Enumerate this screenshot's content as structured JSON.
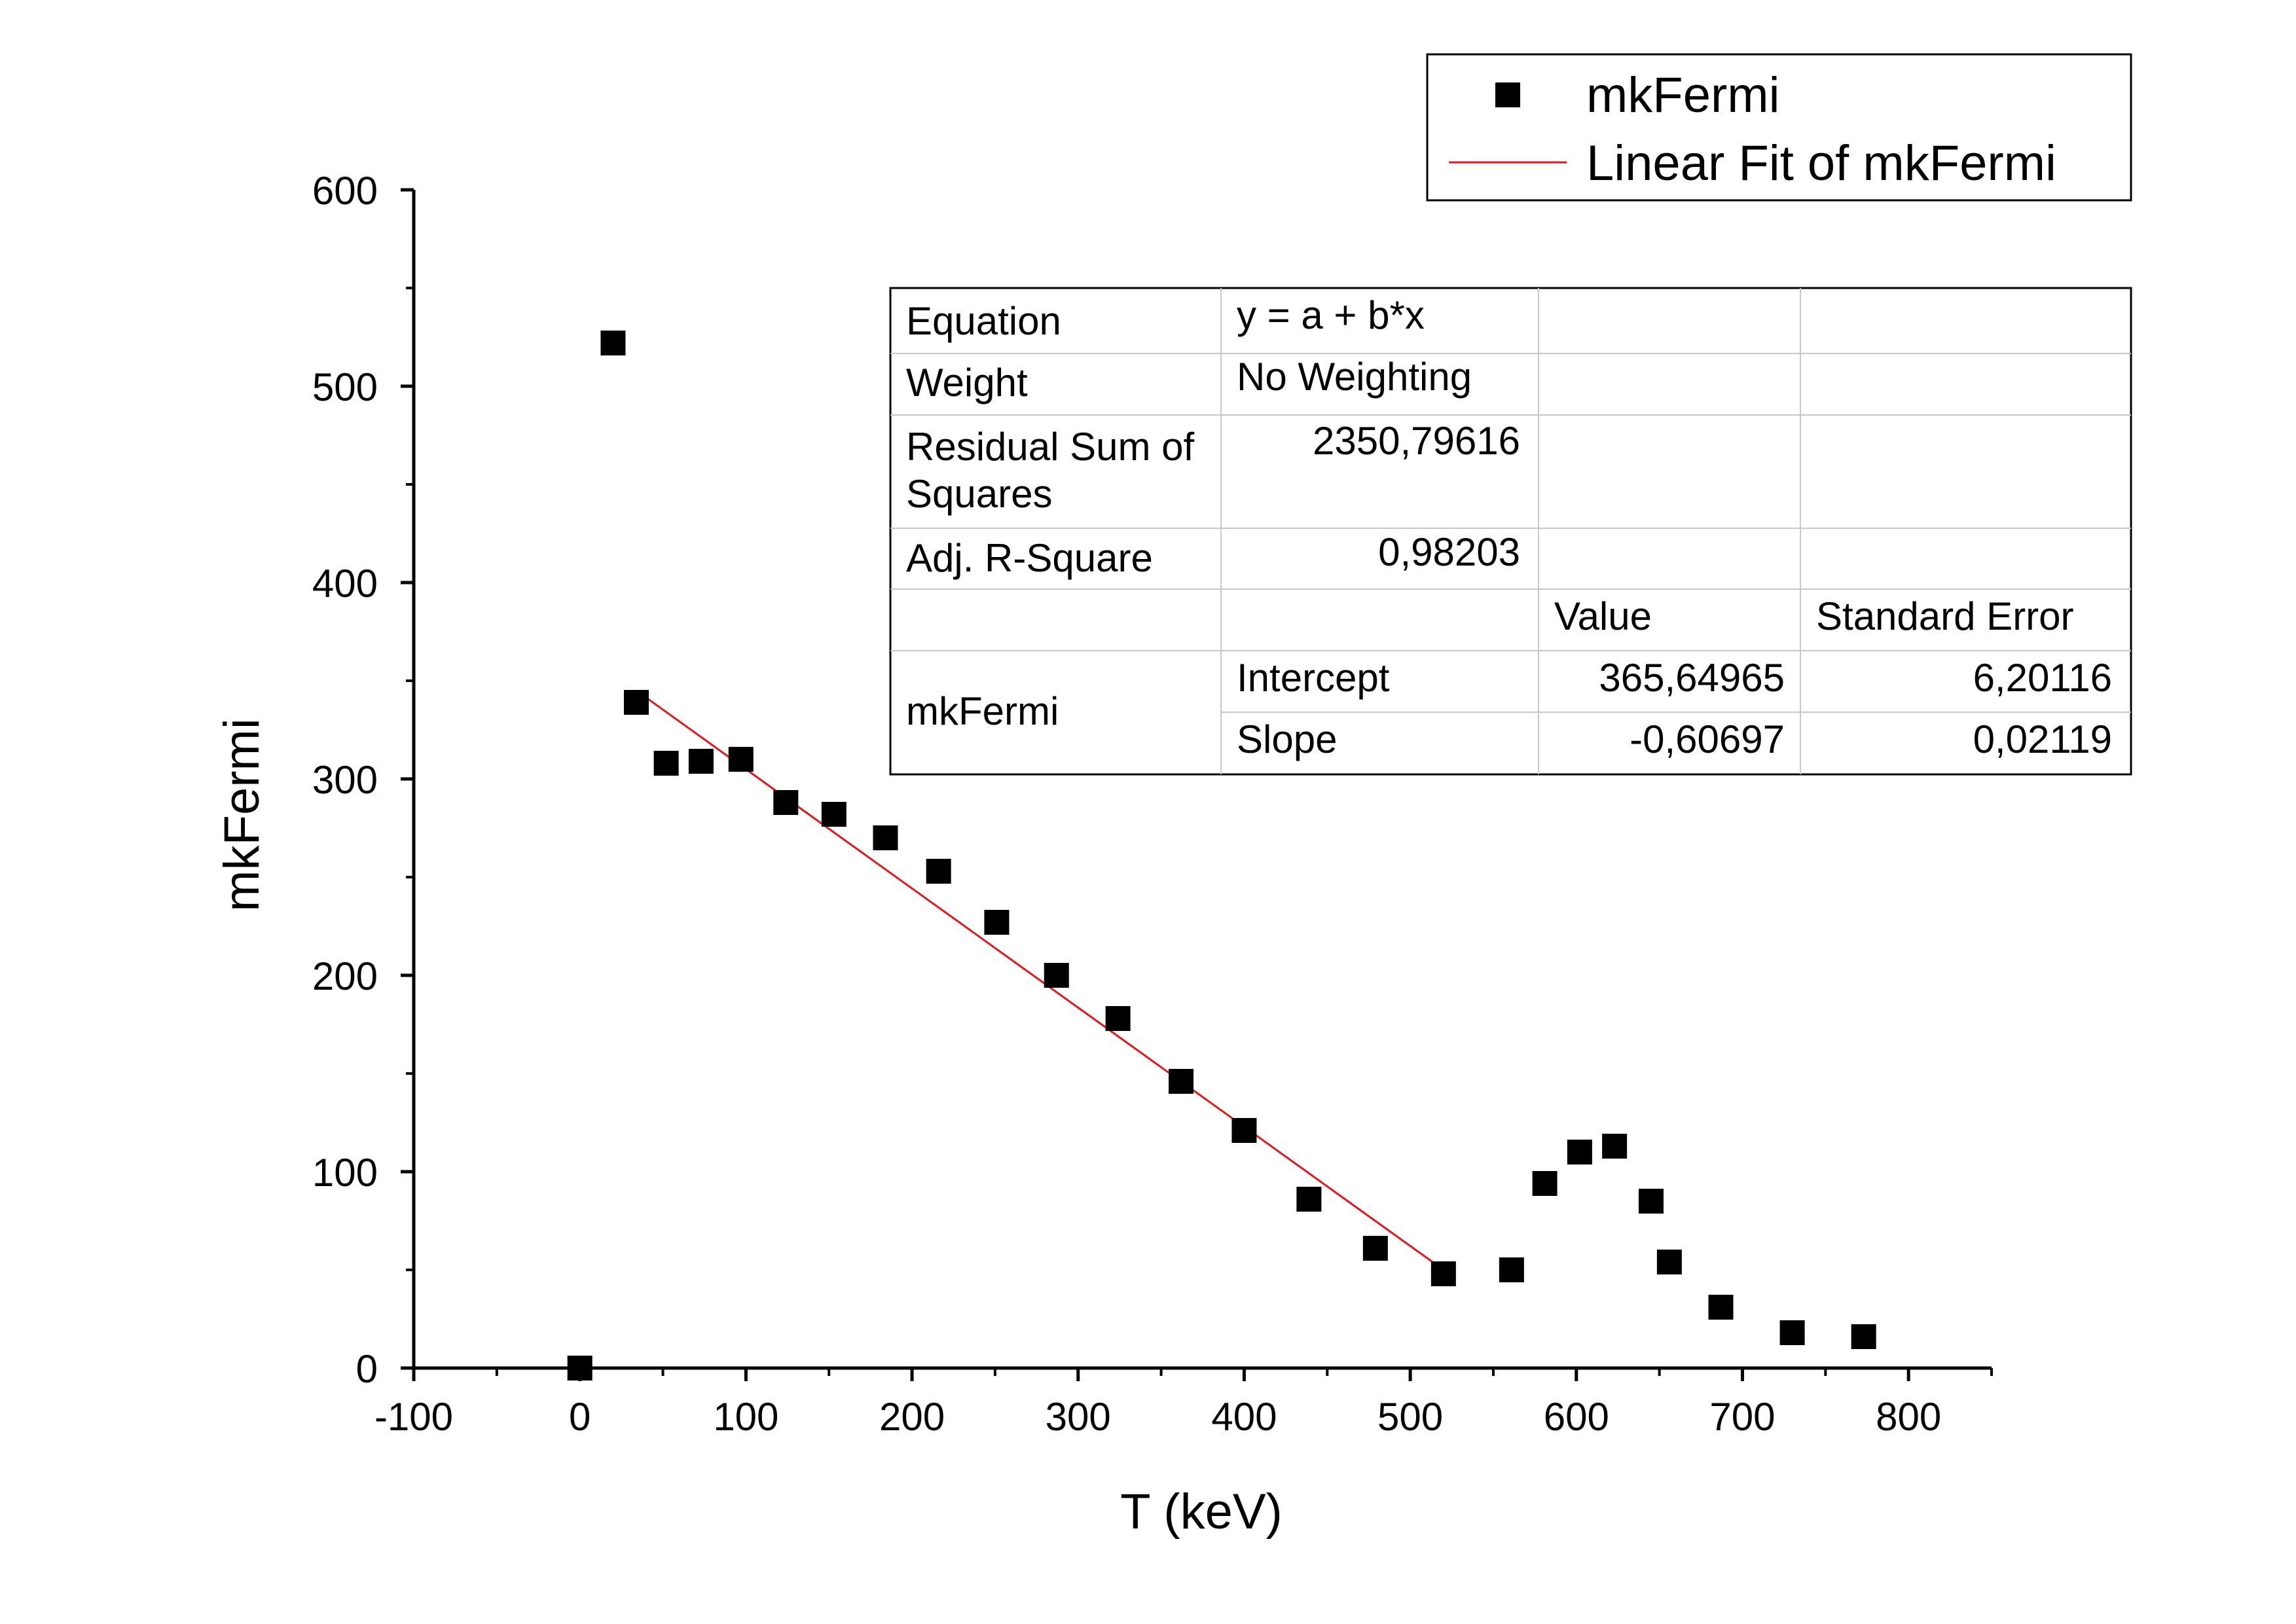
{
  "chart_data": {
    "type": "scatter",
    "title": "",
    "xlabel": "T (keV)",
    "ylabel": "mkFermi",
    "xlim": [
      -100,
      850
    ],
    "ylim": [
      0,
      600
    ],
    "x_ticks": [
      -100,
      0,
      100,
      200,
      300,
      400,
      500,
      600,
      700,
      800
    ],
    "y_ticks": [
      0,
      100,
      200,
      300,
      400,
      500,
      600
    ],
    "x_tick_labels": [
      "-100",
      "0",
      "100",
      "200",
      "300",
      "400",
      "500",
      "600",
      "700",
      "800"
    ],
    "y_tick_labels": [
      "0",
      "100",
      "200",
      "300",
      "400",
      "500",
      "600"
    ],
    "grid": false,
    "series": [
      {
        "name": "mkFermi",
        "marker": "square",
        "color": "#000000",
        "points": [
          {
            "x": 0,
            "y": 0
          },
          {
            "x": 20,
            "y": 522
          },
          {
            "x": 34,
            "y": 339
          },
          {
            "x": 52,
            "y": 308
          },
          {
            "x": 73,
            "y": 309
          },
          {
            "x": 97,
            "y": 310
          },
          {
            "x": 124,
            "y": 288
          },
          {
            "x": 153,
            "y": 282
          },
          {
            "x": 184,
            "y": 270
          },
          {
            "x": 216,
            "y": 253
          },
          {
            "x": 251,
            "y": 227
          },
          {
            "x": 287,
            "y": 200
          },
          {
            "x": 324,
            "y": 178
          },
          {
            "x": 362,
            "y": 146
          },
          {
            "x": 400,
            "y": 121
          },
          {
            "x": 439,
            "y": 86
          },
          {
            "x": 479,
            "y": 61
          },
          {
            "x": 520,
            "y": 48
          },
          {
            "x": 561,
            "y": 50
          },
          {
            "x": 581,
            "y": 94
          },
          {
            "x": 602,
            "y": 110
          },
          {
            "x": 623,
            "y": 113
          },
          {
            "x": 645,
            "y": 85
          },
          {
            "x": 656,
            "y": 54
          },
          {
            "x": 687,
            "y": 31
          },
          {
            "x": 730,
            "y": 18
          },
          {
            "x": 773,
            "y": 16
          }
        ]
      },
      {
        "name": "Linear Fit of mkFermi",
        "type": "line",
        "color": "#e8161b",
        "x_range": [
          34,
          520
        ],
        "intercept": 365.64965,
        "slope": -0.60697
      }
    ],
    "legend": {
      "placement": "top-right",
      "entries": [
        {
          "label": "mkFermi",
          "symbol": "square",
          "color": "#000000"
        },
        {
          "label": "Linear Fit of mkFermi",
          "symbol": "line",
          "color": "#e8161b"
        }
      ]
    },
    "fit_table": {
      "equation_label": "Equation",
      "equation": "y = a + b*x",
      "weight_label": "Weight",
      "weight": "No Weighting",
      "rss_label_line1": "Residual Sum of",
      "rss_label_line2": "Squares",
      "rss": "2350,79616",
      "adj_r2_label": "Adj. R-Square",
      "adj_r2": "0,98203",
      "value_header": "Value",
      "stderr_header": "Standard Error",
      "group_label": "mkFermi",
      "intercept_label": "Intercept",
      "intercept_value": "365,64965",
      "intercept_error": "6,20116",
      "slope_label": "Slope",
      "slope_value": "-0,60697",
      "slope_error": "0,02119"
    }
  }
}
